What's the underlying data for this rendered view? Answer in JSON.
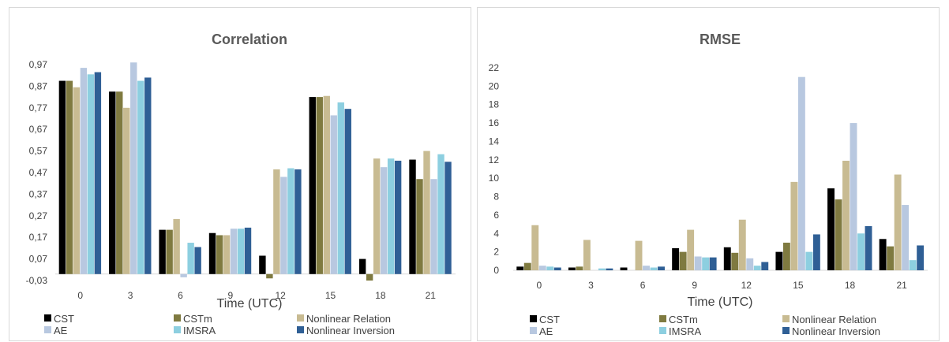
{
  "chart_data": [
    {
      "type": "bar",
      "title": "Correlation",
      "xlabel": "Time (UTC)",
      "ylabel": "",
      "ylim": [
        -0.03,
        0.97
      ],
      "yticks": [
        "0,97",
        "0,87",
        "0,77",
        "0,67",
        "0,57",
        "0,47",
        "0,37",
        "0,27",
        "0,17",
        "0,07",
        "-0,03"
      ],
      "categories": [
        "0",
        "3",
        "6",
        "9",
        "12",
        "15",
        "18",
        "21"
      ],
      "series": [
        {
          "name": "CST",
          "color": "#000000",
          "values": [
            0.895,
            0.845,
            0.205,
            0.19,
            0.085,
            0.82,
            0.07,
            0.53
          ]
        },
        {
          "name": "CSTm",
          "color": "#7f7a40",
          "values": [
            0.895,
            0.845,
            0.205,
            0.18,
            -0.02,
            0.82,
            -0.03,
            0.44
          ]
        },
        {
          "name": "Nonlinear Relation",
          "color": "#c8bb92",
          "values": [
            0.865,
            0.77,
            0.255,
            0.18,
            0.485,
            0.825,
            0.535,
            0.57
          ]
        },
        {
          "name": "AE",
          "color": "#b8c8e0",
          "values": [
            0.955,
            0.98,
            -0.015,
            0.21,
            0.45,
            0.735,
            0.495,
            0.44
          ]
        },
        {
          "name": "IMSRA",
          "color": "#8dcfe0",
          "values": [
            0.925,
            0.895,
            0.145,
            0.21,
            0.49,
            0.795,
            0.535,
            0.555
          ]
        },
        {
          "name": "Nonlinear Inversion",
          "color": "#2f5f95",
          "values": [
            0.935,
            0.91,
            0.125,
            0.215,
            0.485,
            0.765,
            0.525,
            0.52
          ]
        }
      ],
      "legend": "bottom"
    },
    {
      "type": "bar",
      "title": "RMSE",
      "xlabel": "Time (UTC)",
      "ylabel": "",
      "ylim": [
        0,
        22
      ],
      "yticks": [
        "22",
        "20",
        "18",
        "16",
        "14",
        "12",
        "10",
        "8",
        "6",
        "4",
        "2",
        "0"
      ],
      "categories": [
        "0",
        "3",
        "6",
        "9",
        "12",
        "15",
        "18",
        "21"
      ],
      "series": [
        {
          "name": "CST",
          "color": "#000000",
          "values": [
            0.4,
            0.3,
            0.3,
            2.4,
            2.5,
            2.0,
            8.9,
            3.4
          ]
        },
        {
          "name": "CSTm",
          "color": "#7f7a40",
          "values": [
            0.8,
            0.4,
            0.0,
            2.0,
            1.9,
            3.0,
            7.7,
            2.6
          ]
        },
        {
          "name": "Nonlinear Relation",
          "color": "#c8bb92",
          "values": [
            4.9,
            3.3,
            3.2,
            4.4,
            5.5,
            9.6,
            11.9,
            10.4
          ]
        },
        {
          "name": "AE",
          "color": "#b8c8e0",
          "values": [
            0.5,
            0.0,
            0.5,
            1.5,
            1.3,
            21.0,
            16.0,
            7.1
          ]
        },
        {
          "name": "IMSRA",
          "color": "#8dcfe0",
          "values": [
            0.4,
            0.2,
            0.3,
            1.4,
            0.5,
            2.0,
            4.0,
            1.1
          ]
        },
        {
          "name": "Nonlinear Inversion",
          "color": "#2f5f95",
          "values": [
            0.3,
            0.2,
            0.4,
            1.4,
            0.9,
            3.9,
            4.8,
            2.7
          ]
        }
      ],
      "legend": "bottom"
    }
  ]
}
